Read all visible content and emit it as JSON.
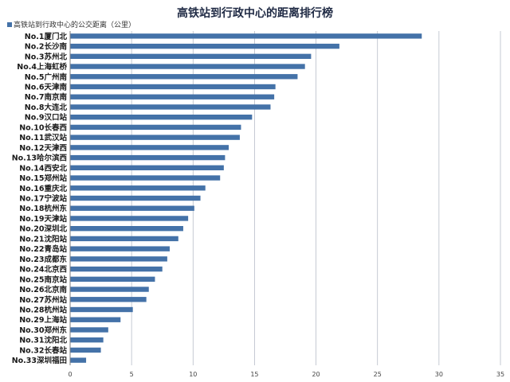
{
  "chart_data": {
    "type": "bar",
    "orientation": "horizontal",
    "title": "高铁站到行政中心的距离排行榜",
    "legend": {
      "label": "高铁站到行政中心的公交距离（公里）",
      "position": "top-left"
    },
    "colors": {
      "bar": "#4472a8",
      "grid": "#b8bec8",
      "axis": "#7f7f7f"
    },
    "xlim": [
      0,
      35
    ],
    "xticks": [
      0,
      5,
      10,
      15,
      20,
      25,
      30,
      35
    ],
    "grid": true,
    "categories": [
      "No.1厦门北",
      "No.2长沙南",
      "No.3苏州北",
      "No.4上海虹桥",
      "No.5广州南",
      "No.6天津南",
      "No.7南京南",
      "No.8大连北",
      "No.9汉口站",
      "No.10长春西",
      "No.11武汉站",
      "No.12天津西",
      "No.13哈尔滨西",
      "No.14西安北",
      "No.15郑州站",
      "No.16重庆北",
      "No.17宁波站",
      "No.18杭州东",
      "No.19天津站",
      "No.20深圳北",
      "No.21沈阳站",
      "No.22青岛站",
      "No.23成都东",
      "No.24北京西",
      "No.25南京站",
      "No.26北京南",
      "No.27苏州站",
      "No.28杭州站",
      "No.29上海站",
      "No.30郑州东",
      "No.31沈阳北",
      "No.32长春站",
      "No.33深圳福田"
    ],
    "values": [
      28.6,
      21.9,
      19.6,
      19.1,
      18.5,
      16.7,
      16.6,
      16.3,
      14.8,
      13.9,
      13.8,
      12.9,
      12.6,
      12.5,
      12.2,
      11.0,
      10.6,
      10.1,
      9.6,
      9.2,
      8.8,
      8.1,
      7.9,
      7.5,
      6.9,
      6.4,
      6.2,
      5.1,
      4.1,
      3.1,
      2.7,
      2.5,
      1.3
    ]
  }
}
